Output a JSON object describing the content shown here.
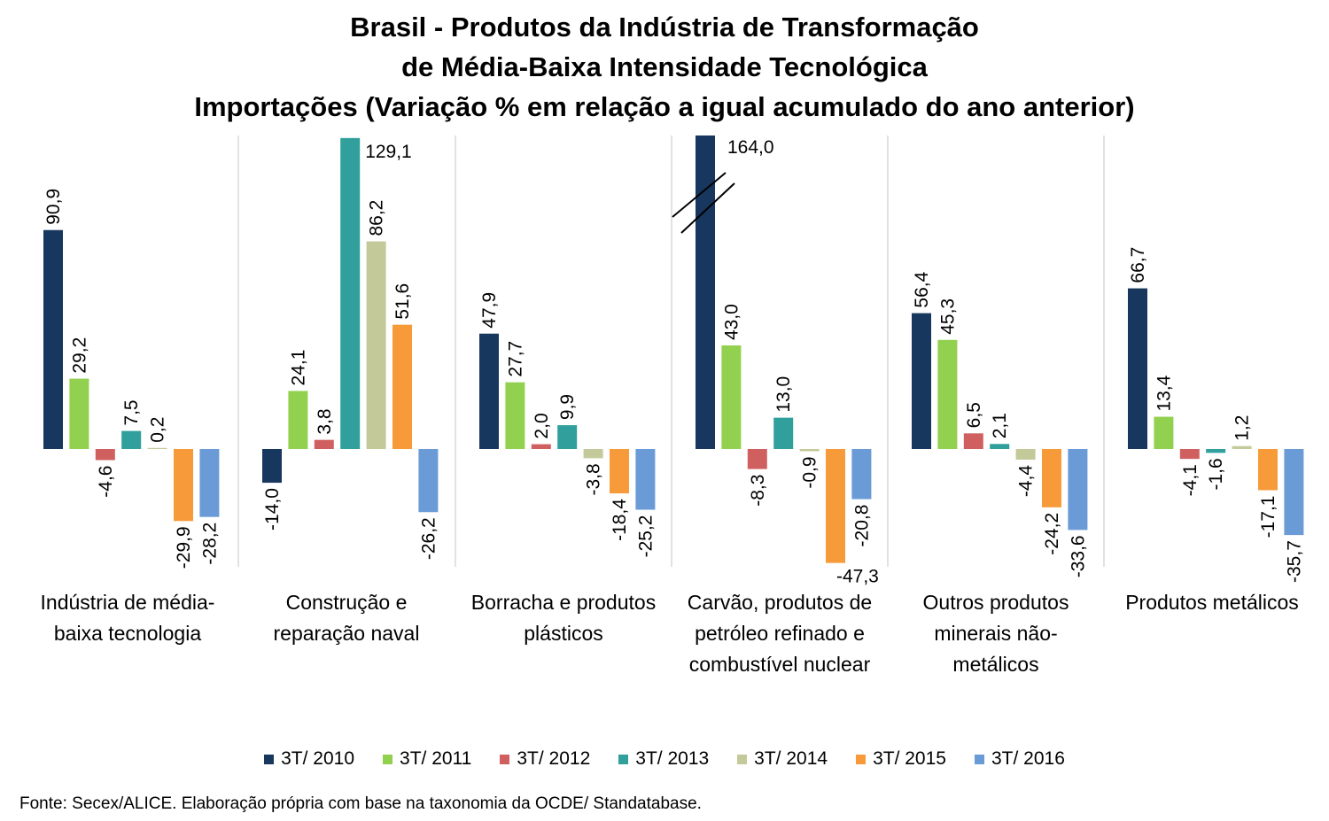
{
  "chart_data": {
    "type": "bar",
    "title": [
      "Brasil - Produtos da Indústria de Transformação",
      "de Média-Baixa Intensidade Tecnológica",
      "Importações (Variação % em relação a igual acumulado do ano anterior)"
    ],
    "categories": [
      "Indústria de média-baixa tecnologia",
      "Construção e reparação naval",
      "Borracha e produtos plásticos",
      "Carvão, produtos de petróleo refinado e combustível nuclear",
      "Outros produtos minerais não-metálicos",
      "Produtos metálicos"
    ],
    "category_lines": [
      [
        "Indústria de média-",
        "baixa tecnologia"
      ],
      [
        "Construção e",
        "reparação naval"
      ],
      [
        "Borracha e produtos",
        "plásticos"
      ],
      [
        "Carvão, produtos de",
        "petróleo refinado e",
        "combustível nuclear"
      ],
      [
        "Outros produtos",
        "minerais não-",
        "metálicos"
      ],
      [
        "Produtos metálicos"
      ]
    ],
    "series": [
      {
        "name": "3T/ 2010",
        "color": "#17375E",
        "values": [
          90.9,
          -14.0,
          47.9,
          164.0,
          56.4,
          66.7
        ]
      },
      {
        "name": "3T/ 2011",
        "color": "#92D050",
        "values": [
          29.2,
          24.1,
          27.7,
          43.0,
          45.3,
          13.4
        ]
      },
      {
        "name": "3T/ 2012",
        "color": "#D06060",
        "values": [
          -4.6,
          3.8,
          2.0,
          -8.3,
          6.5,
          -4.1
        ]
      },
      {
        "name": "3T/ 2013",
        "color": "#31A09C",
        "values": [
          7.5,
          129.1,
          9.9,
          13.0,
          2.1,
          -1.6
        ]
      },
      {
        "name": "3T/ 2014",
        "color": "#C4C99A",
        "values": [
          0.2,
          86.2,
          -3.8,
          -0.9,
          -4.4,
          1.2
        ]
      },
      {
        "name": "3T/ 2015",
        "color": "#F79B3A",
        "values": [
          -29.9,
          51.6,
          -18.4,
          -47.3,
          -24.2,
          -17.1
        ]
      },
      {
        "name": "3T/ 2016",
        "color": "#6A9BD6",
        "values": [
          -28.2,
          -26.2,
          -25.2,
          -20.8,
          -33.6,
          -35.7
        ]
      }
    ],
    "labels": [
      [
        "90,9",
        "-14,0",
        "47,9",
        "164,0",
        "56,4",
        "66,7"
      ],
      [
        "29,2",
        "24,1",
        "27,7",
        "43,0",
        "45,3",
        "13,4"
      ],
      [
        "-4,6",
        "3,8",
        "2,0",
        "-8,3",
        "6,5",
        "-4,1"
      ],
      [
        "7,5",
        "129,1",
        "9,9",
        "13,0",
        "2,1",
        "-1,6"
      ],
      [
        "0,2",
        "86,2",
        "-3,8",
        "-0,9",
        "-4,4",
        "1,2"
      ],
      [
        "-29,9",
        "51,6",
        "-18,4",
        "-47,3",
        "-24,2",
        "-17,1"
      ],
      [
        "-28,2",
        "-26,2",
        "-25,2",
        "-20,8",
        "-33,6",
        "-35,7"
      ]
    ],
    "axis_break": "3T/ 2010 bar in 'Carvão, produtos de petróleo refinado e combustível nuclear' is truncated (broken axis)",
    "legend_position": "bottom",
    "grid": false
  },
  "source_note": "Fonte: Secex/ALICE. Elaboração própria com base na taxonomia da OCDE/ Standatabase."
}
